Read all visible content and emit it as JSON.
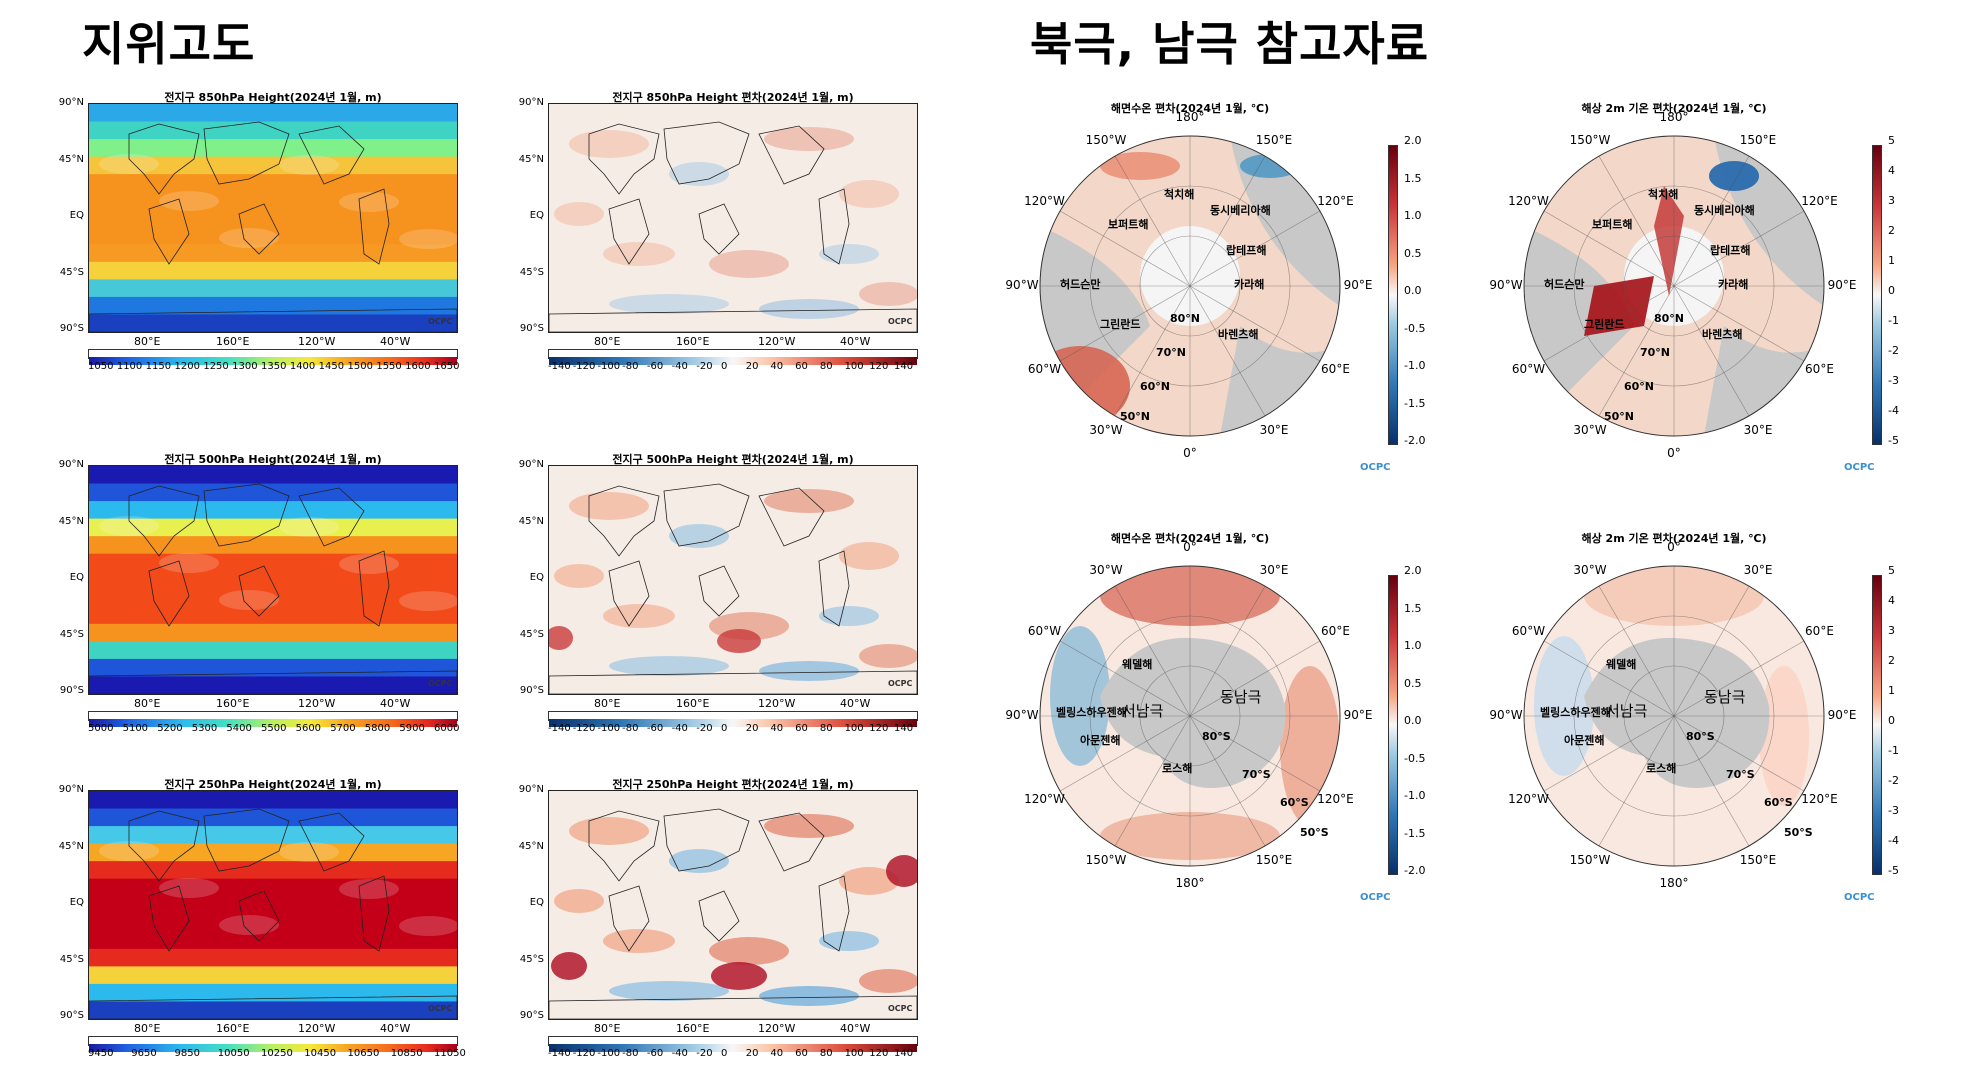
{
  "headings": {
    "left": "지위고도",
    "right": "북극, 남극 참고자료"
  },
  "global_panels": [
    {
      "title": "전지구 850hPa Height(2024년 1월, m)",
      "kind": "abs",
      "ticks": [
        "1050",
        "1100",
        "1150",
        "1200",
        "1250",
        "1300",
        "1350",
        "1400",
        "1450",
        "1500",
        "1550",
        "1600",
        "1650"
      ]
    },
    {
      "title": "전지구 850hPa Height 편차(2024년 1월, m)",
      "kind": "anom",
      "ticks": [
        "-140",
        "-120",
        "-100",
        "-80",
        "-60",
        "-40",
        "-20",
        "0",
        "20",
        "40",
        "60",
        "80",
        "100",
        "120",
        "140"
      ]
    },
    {
      "title": "전지구 500hPa Height(2024년 1월, m)",
      "kind": "abs",
      "ticks": [
        "5000",
        "5100",
        "5200",
        "5300",
        "5400",
        "5500",
        "5600",
        "5700",
        "5800",
        "5900",
        "6000"
      ]
    },
    {
      "title": "전지구 500hPa Height 편차(2024년 1월, m)",
      "kind": "anom",
      "ticks": [
        "-140",
        "-120",
        "-100",
        "-80",
        "-60",
        "-40",
        "-20",
        "0",
        "20",
        "40",
        "60",
        "80",
        "100",
        "120",
        "140"
      ]
    },
    {
      "title": "전지구 250hPa Height(2024년 1월, m)",
      "kind": "abs",
      "ticks": [
        "9450",
        "9650",
        "9850",
        "10050",
        "10250",
        "10450",
        "10650",
        "10850",
        "11050"
      ]
    },
    {
      "title": "전지구 250hPa Height 편차(2024년 1월, m)",
      "kind": "anom",
      "ticks": [
        "-140",
        "-120",
        "-100",
        "-80",
        "-60",
        "-40",
        "-20",
        "0",
        "20",
        "40",
        "60",
        "80",
        "100",
        "120",
        "140"
      ]
    }
  ],
  "lat_labels": [
    "90°N",
    "45°N",
    "EQ",
    "45°S",
    "90°S"
  ],
  "lon_labels": [
    "80°E",
    "160°E",
    "120°W",
    "40°W"
  ],
  "map_credit": "OCPC",
  "polar_panels": [
    {
      "title": "해면수온 편차(2024년 1월, ℃)",
      "ticks": [
        "2.0",
        "1.5",
        "1.0",
        "0.5",
        "0.0",
        "-0.5",
        "-1.0",
        "-1.5",
        "-2.0"
      ],
      "dirs": [
        "180°",
        "150°E",
        "120°E",
        "90°E",
        "60°E",
        "30°E",
        "0°",
        "30°W",
        "60°W",
        "90°W",
        "120°W",
        "150°W"
      ],
      "seas": [
        "척치해",
        "동시베리아해",
        "보퍼트해",
        "랍테프해",
        "카라해",
        "허드슨만",
        "그린란드",
        "80°N",
        "바렌츠해",
        "70°N",
        "60°N",
        "50°N"
      ]
    },
    {
      "title": "해상 2m 기온 편차(2024년 1월, ℃)",
      "ticks": [
        "5",
        "4",
        "3",
        "2",
        "1",
        "0",
        "-1",
        "-2",
        "-3",
        "-4",
        "-5"
      ],
      "dirs": [
        "180°",
        "150°E",
        "120°E",
        "90°E",
        "60°E",
        "30°E",
        "0°",
        "30°W",
        "60°W",
        "90°W",
        "120°W",
        "150°W"
      ],
      "seas": [
        "척치해",
        "동시베리아해",
        "보퍼트해",
        "랍테프해",
        "카라해",
        "허드슨만",
        "그린란드",
        "80°N",
        "바렌츠해",
        "70°N",
        "60°N",
        "50°N"
      ]
    },
    {
      "title": "해면수온 편차(2024년 1월, ℃)",
      "ticks": [
        "2.0",
        "1.5",
        "1.0",
        "0.5",
        "0.0",
        "-0.5",
        "-1.0",
        "-1.5",
        "-2.0"
      ],
      "dirs": [
        "0°",
        "30°E",
        "60°E",
        "90°E",
        "120°E",
        "150°E",
        "180°",
        "150°W",
        "120°W",
        "90°W",
        "60°W",
        "30°W"
      ],
      "seas": [
        "웨델해",
        "벨링스하우젠해",
        "아문젠해",
        "로스해",
        "80°S",
        "70°S",
        "60°S",
        "50°S"
      ],
      "big": [
        "서남극",
        "동남극"
      ]
    },
    {
      "title": "해상 2m 기온 편차(2024년 1월, ℃)",
      "ticks": [
        "5",
        "4",
        "3",
        "2",
        "1",
        "0",
        "-1",
        "-2",
        "-3",
        "-4",
        "-5"
      ],
      "dirs": [
        "0°",
        "30°E",
        "60°E",
        "90°E",
        "120°E",
        "150°E",
        "180°",
        "150°W",
        "120°W",
        "90°W",
        "60°W",
        "30°W"
      ],
      "seas": [
        "웨델해",
        "벨링스하우젠해",
        "아문젠해",
        "로스해",
        "80°S",
        "70°S",
        "60°S",
        "50°S"
      ],
      "big": [
        "서남극",
        "동남극"
      ]
    }
  ],
  "polar_credit": "OCPC"
}
